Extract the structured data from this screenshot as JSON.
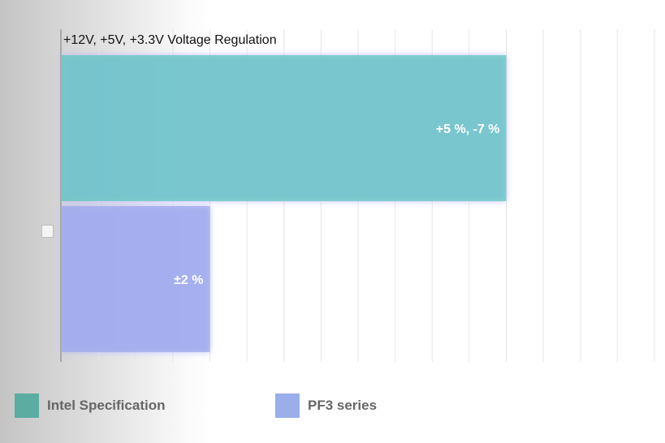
{
  "chart_data": {
    "type": "bar",
    "orientation": "horizontal",
    "title": "+12V, +5V, +3.3V Voltage Regulation",
    "xlabel": "",
    "ylabel": "",
    "grid": true,
    "legend_position": "bottom",
    "series": [
      {
        "name": "Intel Specification",
        "value": 12,
        "label": "+5 %, -7 %",
        "color": "#5bc8bc"
      },
      {
        "name": "PF3 series",
        "value": 4,
        "label": "±2 %",
        "color": "#9aa8ea"
      }
    ],
    "xlim": [
      0,
      16
    ]
  },
  "legend": [
    {
      "label": "Intel Specification",
      "color": "#5bada2"
    },
    {
      "label": "PF3 series",
      "color": "#9aaeea"
    }
  ]
}
